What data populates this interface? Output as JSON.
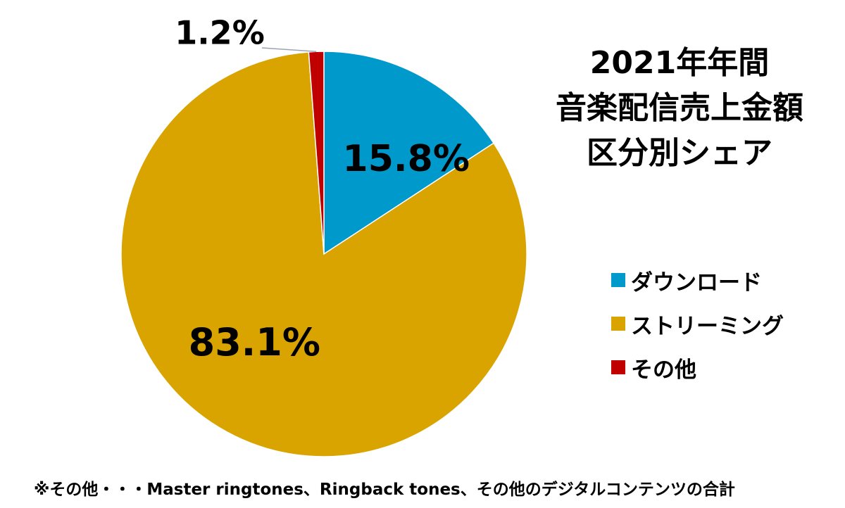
{
  "title": [
    "2021年年間",
    "音楽配信売上金額",
    "区分別シェア"
  ],
  "footnote": "※その他・・・Master ringtones、Ringback tones、その他のデジタルコンテンツの合計",
  "chart_data": {
    "type": "pie",
    "title": "2021年年間 音楽配信売上金額 区分別シェア",
    "unit": "%",
    "legend_position": "right",
    "slices": [
      {
        "label": "ダウンロード",
        "value": 15.8,
        "display": "15.8%",
        "color": "#0099CC"
      },
      {
        "label": "ストリーミング",
        "value": 83.1,
        "display": "83.1%",
        "color": "#D9A300"
      },
      {
        "label": "その他",
        "value": 1.2,
        "display": "1.2%",
        "color": "#C00000"
      }
    ]
  }
}
